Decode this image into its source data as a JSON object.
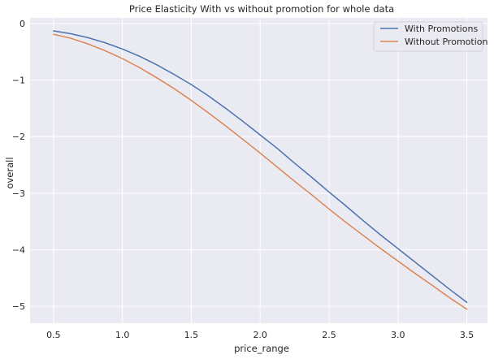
{
  "chart_data": {
    "type": "line",
    "title": "Price Elasticity With vs without promotion for whole data",
    "xlabel": "price_range",
    "ylabel": "overall",
    "xlim": [
      0.33,
      3.65
    ],
    "ylim": [
      -5.3,
      0.1
    ],
    "xticks": [
      0.5,
      1.0,
      1.5,
      2.0,
      2.5,
      3.0,
      3.5
    ],
    "xtick_labels": [
      "0.5",
      "1.0",
      "1.5",
      "2.0",
      "2.5",
      "3.0",
      "3.5"
    ],
    "yticks": [
      0,
      -1,
      -2,
      -3,
      -4,
      -5
    ],
    "ytick_labels": [
      "0",
      "−1",
      "−2",
      "−3",
      "−4",
      "−5"
    ],
    "grid": true,
    "legend_position": "top-right",
    "background_color": "#eaeaf2",
    "series": [
      {
        "name": "With Promotions",
        "color": "#4c72b0",
        "x": [
          0.5,
          0.625,
          0.75,
          0.875,
          1.0,
          1.125,
          1.25,
          1.375,
          1.5,
          1.625,
          1.75,
          1.875,
          2.0,
          2.125,
          2.25,
          2.375,
          2.5,
          2.625,
          2.75,
          2.875,
          3.0,
          3.125,
          3.25,
          3.375,
          3.5
        ],
        "y": [
          -0.13,
          -0.18,
          -0.25,
          -0.34,
          -0.45,
          -0.58,
          -0.73,
          -0.9,
          -1.08,
          -1.28,
          -1.5,
          -1.73,
          -1.97,
          -2.21,
          -2.47,
          -2.72,
          -2.98,
          -3.23,
          -3.49,
          -3.74,
          -3.98,
          -4.22,
          -4.46,
          -4.7,
          -4.93
        ]
      },
      {
        "name": "Without Promotion",
        "color": "#dd8452",
        "x": [
          0.5,
          0.625,
          0.75,
          0.875,
          1.0,
          1.125,
          1.25,
          1.375,
          1.5,
          1.625,
          1.75,
          1.875,
          2.0,
          2.125,
          2.25,
          2.375,
          2.5,
          2.625,
          2.75,
          2.875,
          3.0,
          3.125,
          3.25,
          3.375,
          3.5
        ],
        "y": [
          -0.19,
          -0.26,
          -0.36,
          -0.48,
          -0.62,
          -0.78,
          -0.96,
          -1.15,
          -1.36,
          -1.58,
          -1.81,
          -2.05,
          -2.29,
          -2.54,
          -2.79,
          -3.03,
          -3.28,
          -3.52,
          -3.75,
          -3.98,
          -4.2,
          -4.42,
          -4.63,
          -4.85,
          -5.05
        ]
      }
    ]
  }
}
